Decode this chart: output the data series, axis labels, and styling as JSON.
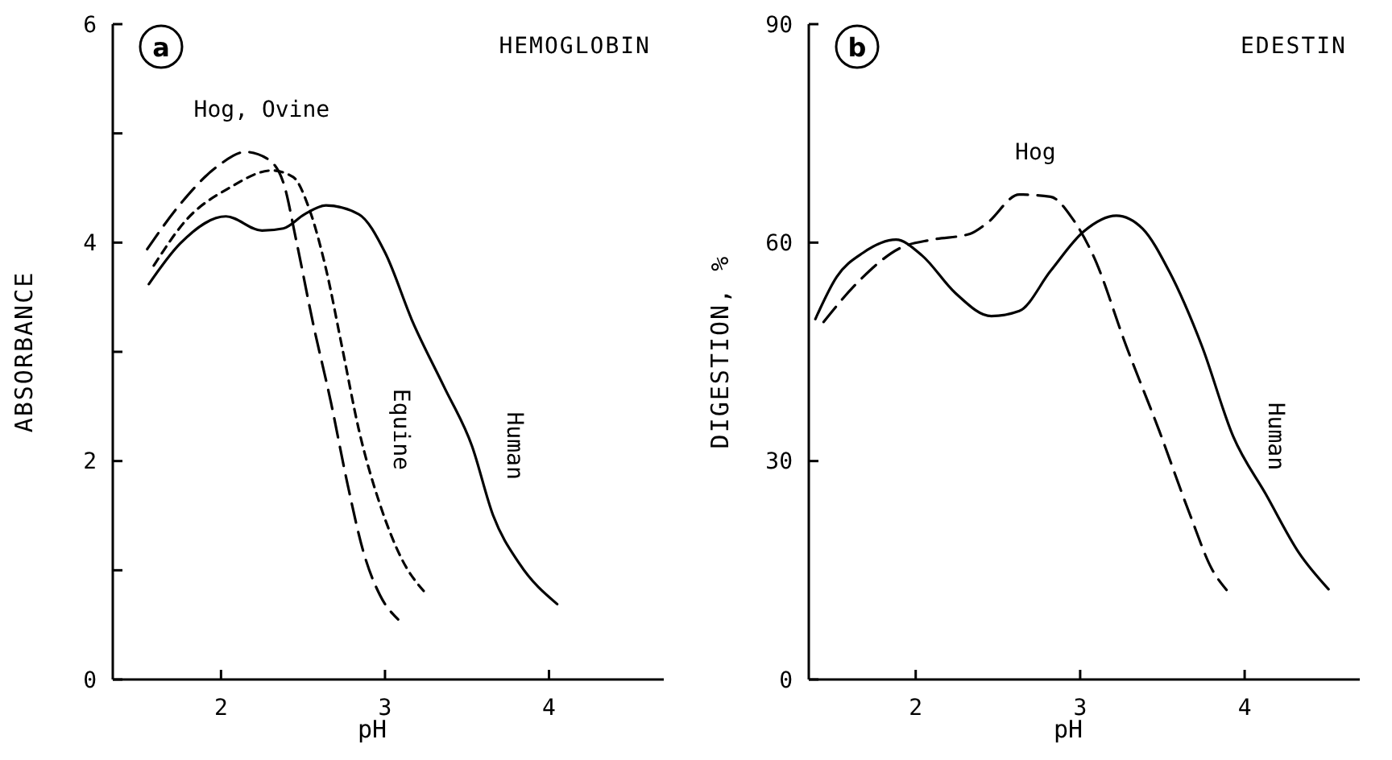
{
  "chart_data": [
    {
      "type": "line",
      "title": "HEMOGLOBIN",
      "xlabel": "pH",
      "ylabel": "ABSORBANCE",
      "annotations": [
        "a"
      ],
      "xlim": [
        1.34,
        4.7
      ],
      "ylim": [
        0,
        6
      ],
      "xticks": [
        2,
        3,
        4
      ],
      "yticks": [
        0,
        {
          "value": 1,
          "label": null
        },
        2,
        {
          "value": 3,
          "label": null
        },
        4,
        {
          "value": 5,
          "label": null
        },
        6
      ],
      "grid": false,
      "series": [
        {
          "name": "Human",
          "color": "#000000",
          "line_style": "solid",
          "x": [
            1.56,
            1.75,
            2.03,
            2.25,
            2.38,
            2.51,
            2.64,
            2.84,
            3.0,
            3.17,
            3.36,
            3.53,
            3.66,
            3.82,
            4.05
          ],
          "values": [
            3.62,
            3.99,
            4.24,
            4.11,
            4.13,
            4.26,
            4.34,
            4.26,
            3.91,
            3.27,
            2.68,
            2.14,
            1.5,
            1.06,
            0.69
          ]
        },
        {
          "name": "Hog, Ovine",
          "color": "#000000",
          "line_style": "dashed",
          "x": [
            1.55,
            1.75,
            1.98,
            2.15,
            2.28,
            2.38,
            2.46,
            2.56,
            2.67,
            2.77,
            2.87,
            2.97,
            3.08
          ],
          "values": [
            3.94,
            4.35,
            4.7,
            4.83,
            4.77,
            4.55,
            4.01,
            3.27,
            2.54,
            1.8,
            1.16,
            0.77,
            0.55
          ]
        },
        {
          "name": "Equine",
          "color": "#000000",
          "line_style": "dotted",
          "x": [
            1.59,
            1.79,
            2.05,
            2.31,
            2.44,
            2.54,
            2.64,
            2.74,
            2.84,
            2.97,
            3.1,
            3.26
          ],
          "values": [
            3.79,
            4.21,
            4.5,
            4.66,
            4.6,
            4.3,
            3.76,
            3.03,
            2.29,
            1.6,
            1.11,
            0.77
          ]
        }
      ]
    },
    {
      "type": "line",
      "title": "EDESTIN",
      "xlabel": "pH",
      "ylabel": "DIGESTION, %",
      "annotations": [
        "b"
      ],
      "xlim": [
        1.35,
        4.7
      ],
      "ylim": [
        0,
        90
      ],
      "xticks": [
        2,
        3,
        4
      ],
      "yticks": [
        0,
        30,
        60,
        90
      ],
      "grid": false,
      "series": [
        {
          "name": "Human",
          "color": "#000000",
          "line_style": "solid",
          "x": [
            1.39,
            1.52,
            1.68,
            1.88,
            2.04,
            2.24,
            2.46,
            2.63,
            2.82,
            3.02,
            3.22,
            3.38,
            3.54,
            3.74,
            3.93,
            4.13,
            4.33,
            4.51
          ],
          "values": [
            49.5,
            55.3,
            58.6,
            60.4,
            58.2,
            53.1,
            49.9,
            50.6,
            56.1,
            61.5,
            63.7,
            61.9,
            56.1,
            45.8,
            33.4,
            25.4,
            17.4,
            12.4
          ]
        },
        {
          "name": "Hog",
          "color": "#000000",
          "line_style": "dashed",
          "x": [
            1.44,
            1.65,
            1.91,
            2.1,
            2.33,
            2.43,
            2.63,
            2.82,
            2.95,
            3.08,
            3.28,
            3.48,
            3.67,
            3.8,
            3.89
          ],
          "values": [
            49.1,
            54.6,
            59.3,
            60.4,
            61.2,
            62.6,
            66.6,
            66.3,
            63.4,
            58.2,
            45.8,
            34.2,
            22.5,
            15.2,
            12.3
          ]
        }
      ]
    }
  ]
}
